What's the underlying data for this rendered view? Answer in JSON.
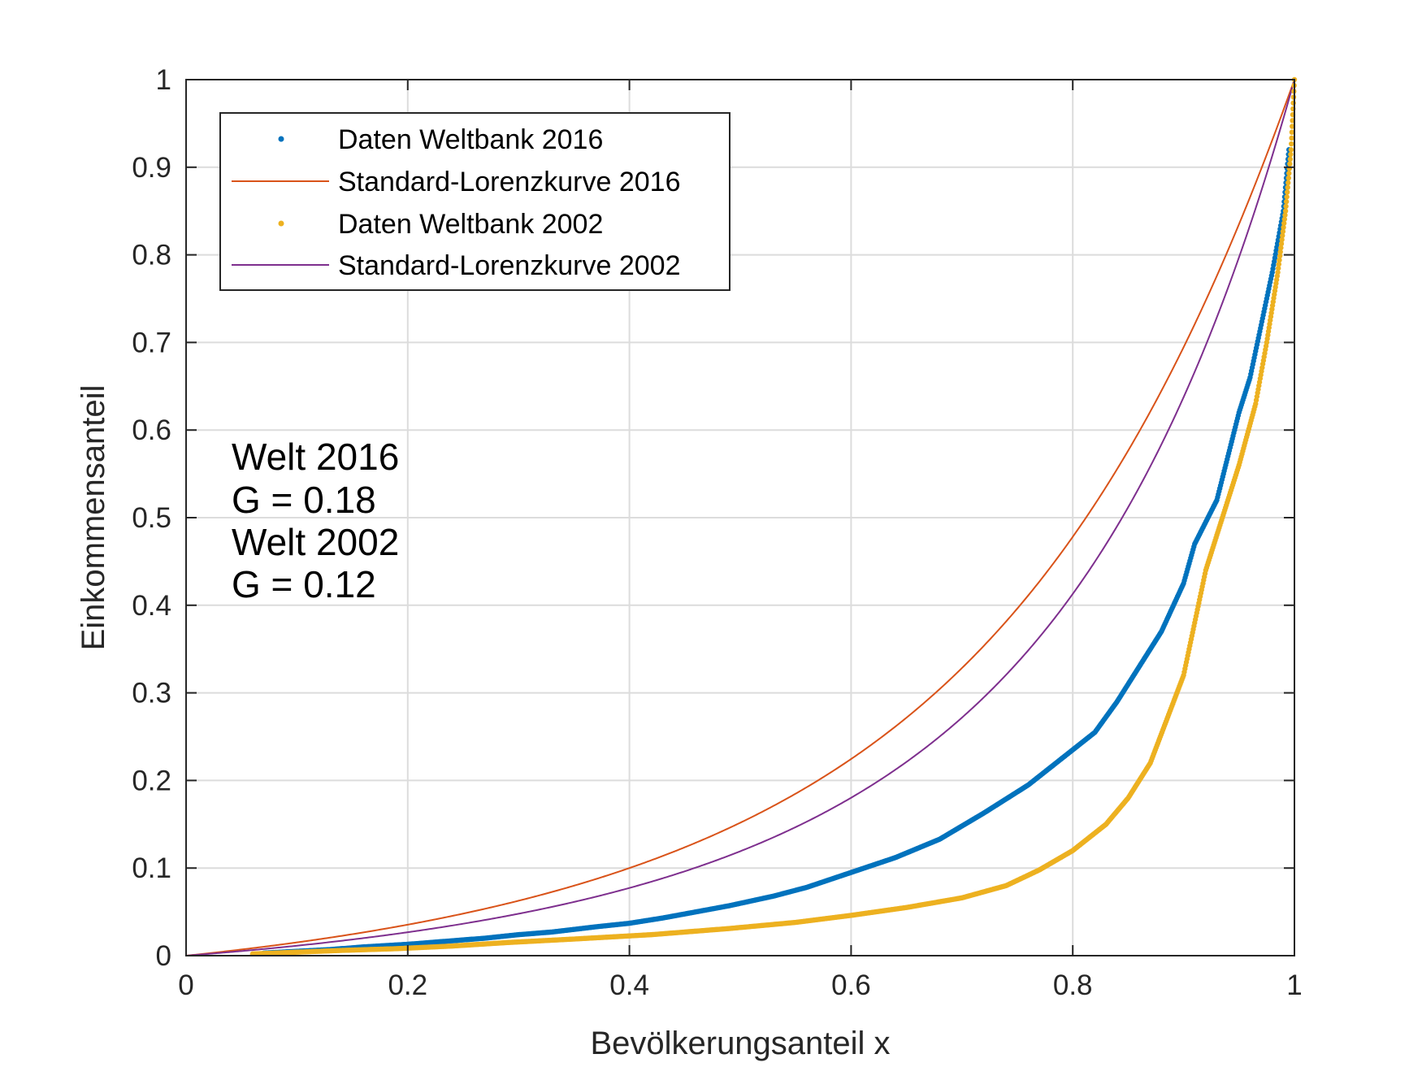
{
  "chart_data": {
    "type": "scatter",
    "xlabel": "Bevölkerungsanteil x",
    "ylabel": "Einkommensanteil",
    "xlim": [
      0,
      1
    ],
    "ylim": [
      0,
      1
    ],
    "grid": true,
    "legend_position": "top-left",
    "x_ticks": [
      "0",
      "0.2",
      "0.4",
      "0.6",
      "0.8",
      "1"
    ],
    "y_ticks": [
      "0",
      "0.1",
      "0.2",
      "0.3",
      "0.4",
      "0.5",
      "0.6",
      "0.7",
      "0.8",
      "0.9",
      "1"
    ],
    "annotation": [
      "Welt 2016",
      "G = 0.18",
      "Welt 2002",
      "G = 0.12"
    ],
    "series": [
      {
        "name": "Daten Weltbank 2016",
        "kind": "dots",
        "color": "#0072BD",
        "points": [
          [
            0.07,
            0.003
          ],
          [
            0.1,
            0.005
          ],
          [
            0.13,
            0.007
          ],
          [
            0.16,
            0.01
          ],
          [
            0.2,
            0.013
          ],
          [
            0.23,
            0.016
          ],
          [
            0.27,
            0.02
          ],
          [
            0.3,
            0.024
          ],
          [
            0.33,
            0.027
          ],
          [
            0.37,
            0.033
          ],
          [
            0.4,
            0.037
          ],
          [
            0.43,
            0.043
          ],
          [
            0.46,
            0.05
          ],
          [
            0.49,
            0.057
          ],
          [
            0.53,
            0.068
          ],
          [
            0.56,
            0.078
          ],
          [
            0.6,
            0.095
          ],
          [
            0.64,
            0.112
          ],
          [
            0.68,
            0.133
          ],
          [
            0.72,
            0.163
          ],
          [
            0.76,
            0.195
          ],
          [
            0.79,
            0.225
          ],
          [
            0.82,
            0.255
          ],
          [
            0.84,
            0.29
          ],
          [
            0.86,
            0.33
          ],
          [
            0.88,
            0.37
          ],
          [
            0.9,
            0.425
          ],
          [
            0.91,
            0.47
          ],
          [
            0.93,
            0.52
          ],
          [
            0.94,
            0.57
          ],
          [
            0.95,
            0.62
          ],
          [
            0.96,
            0.66
          ],
          [
            0.97,
            0.72
          ],
          [
            0.98,
            0.78
          ],
          [
            0.99,
            0.85
          ],
          [
            0.995,
            0.92
          ]
        ]
      },
      {
        "name": "Standard-Lorenzkurve 2016",
        "kind": "line",
        "color": "#D95319",
        "gini": 0.18
      },
      {
        "name": "Daten Weltbank 2002",
        "kind": "dots",
        "color": "#EDB120",
        "points": [
          [
            0.06,
            0.002
          ],
          [
            0.1,
            0.004
          ],
          [
            0.14,
            0.006
          ],
          [
            0.19,
            0.008
          ],
          [
            0.24,
            0.011
          ],
          [
            0.29,
            0.015
          ],
          [
            0.35,
            0.019
          ],
          [
            0.42,
            0.024
          ],
          [
            0.49,
            0.031
          ],
          [
            0.55,
            0.038
          ],
          [
            0.6,
            0.046
          ],
          [
            0.65,
            0.055
          ],
          [
            0.7,
            0.066
          ],
          [
            0.74,
            0.08
          ],
          [
            0.77,
            0.098
          ],
          [
            0.8,
            0.12
          ],
          [
            0.83,
            0.15
          ],
          [
            0.85,
            0.18
          ],
          [
            0.87,
            0.22
          ],
          [
            0.885,
            0.27
          ],
          [
            0.9,
            0.32
          ],
          [
            0.91,
            0.38
          ],
          [
            0.92,
            0.44
          ],
          [
            0.935,
            0.5
          ],
          [
            0.95,
            0.56
          ],
          [
            0.965,
            0.63
          ],
          [
            0.975,
            0.7
          ],
          [
            0.985,
            0.78
          ],
          [
            0.992,
            0.85
          ],
          [
            0.997,
            0.92
          ],
          [
            1.0,
            1.0
          ]
        ]
      },
      {
        "name": "Standard-Lorenzkurve 2002",
        "kind": "line",
        "color": "#7E2F8E",
        "gini": 0.12
      }
    ]
  }
}
